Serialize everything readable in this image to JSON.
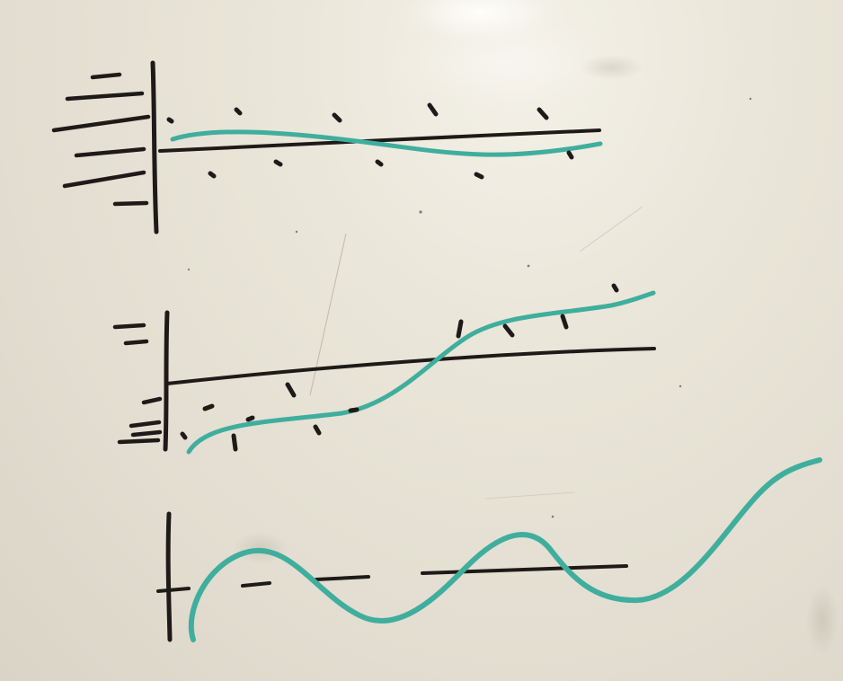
{
  "scene": {
    "subject": "whiteboard-sketch",
    "colors": {
      "board": "#e6e2d5",
      "marker_black": "#1e1a18",
      "marker_teal": "#3fae9d"
    },
    "sketches": [
      {
        "name": "clamped-beam-small-deflection",
        "curve_color": "teal"
      },
      {
        "name": "clamped-beam-large-deflection",
        "curve_color": "teal"
      },
      {
        "name": "wave-around-baseline",
        "curve_color": "teal"
      }
    ]
  }
}
